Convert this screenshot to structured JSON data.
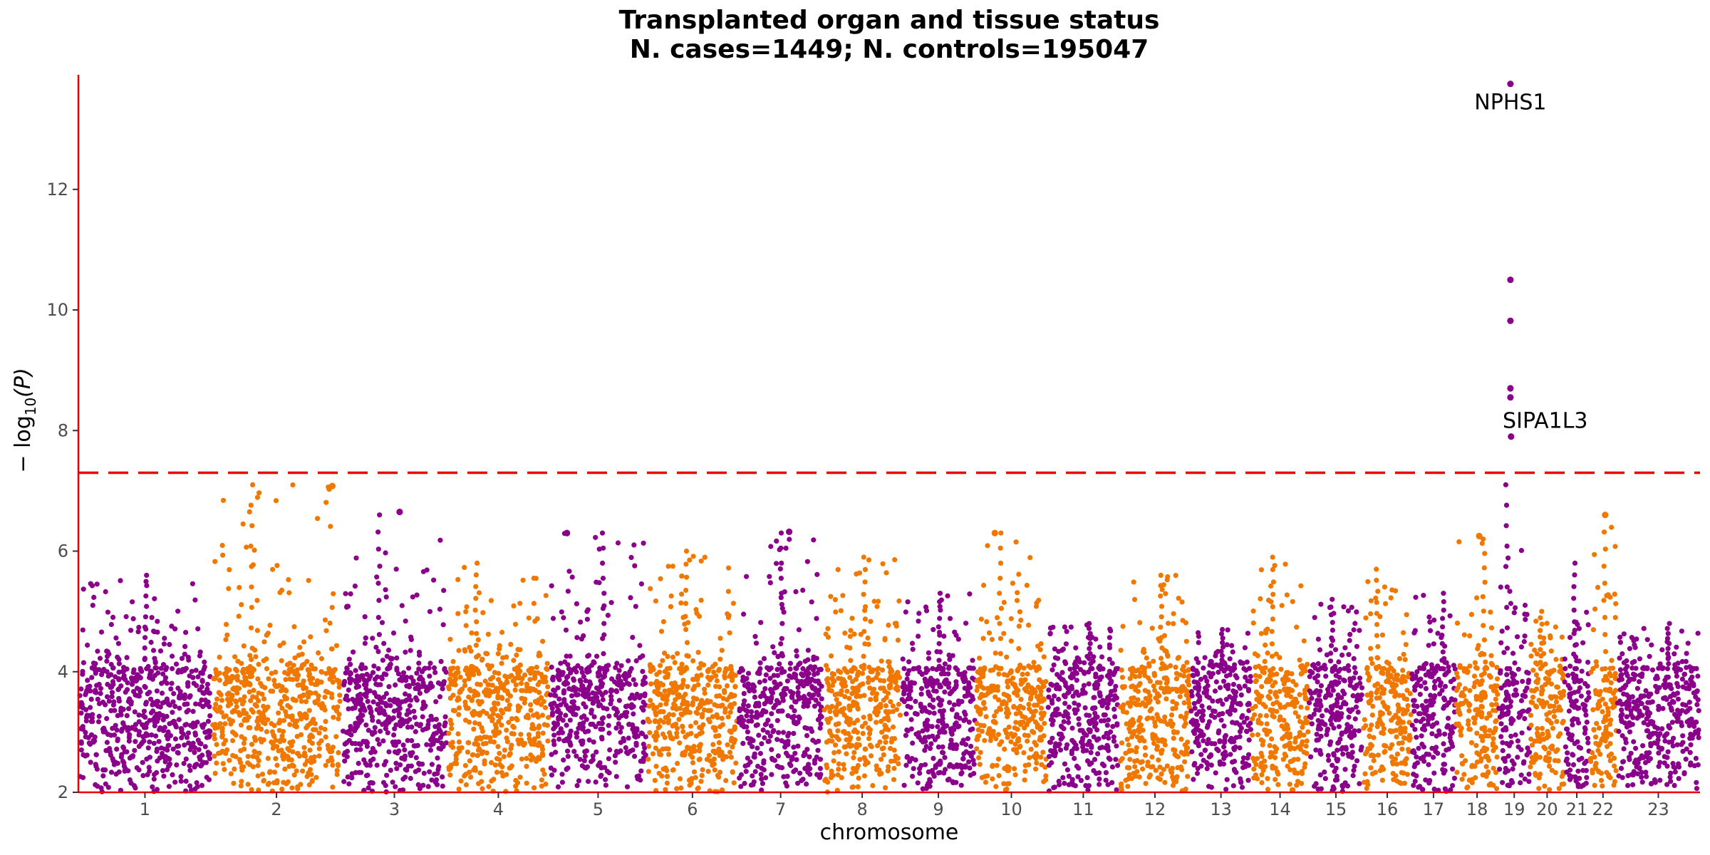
{
  "chart_data": {
    "type": "scatter",
    "title": "Transplanted organ and tissue status",
    "subtitle": "N. cases=1449; N. controls=195047",
    "xlabel": "chromosome",
    "ylabel_main": "− log",
    "ylabel_sub": "10",
    "ylabel_tail": "(P)",
    "ylim": [
      2,
      13.9
    ],
    "yticks": [
      2,
      4,
      6,
      8,
      10,
      12
    ],
    "threshold": 7.3,
    "colors": {
      "odd": "#8b008b",
      "even": "#f07800",
      "axis": "#ee0000",
      "threshold": "#ee0000"
    },
    "chromosomes": [
      "1",
      "2",
      "3",
      "4",
      "5",
      "6",
      "7",
      "8",
      "9",
      "10",
      "11",
      "12",
      "13",
      "14",
      "15",
      "16",
      "17",
      "18",
      "19",
      "20",
      "21",
      "22",
      "23"
    ],
    "chromosome_sizes": [
      249,
      243,
      198,
      191,
      182,
      171,
      159,
      146,
      139,
      134,
      135,
      133,
      114,
      107,
      102,
      90,
      83,
      80,
      59,
      64,
      47,
      51,
      156
    ],
    "chromosome_peaks": [
      5.6,
      7.1,
      6.6,
      5.8,
      6.3,
      6.0,
      6.3,
      5.9,
      5.3,
      6.3,
      4.8,
      5.6,
      4.7,
      5.9,
      5.2,
      5.7,
      5.3,
      6.2,
      7.1,
      5.0,
      5.8,
      6.6,
      4.8
    ],
    "highlight_points": [
      {
        "chr": "2",
        "pos": 0.93,
        "p": 7.08
      },
      {
        "chr": "3",
        "pos": 0.55,
        "p": 6.65
      },
      {
        "chr": "5",
        "pos": 0.18,
        "p": 6.3
      },
      {
        "chr": "7",
        "pos": 0.6,
        "p": 6.32
      },
      {
        "chr": "10",
        "pos": 0.27,
        "p": 6.3
      },
      {
        "chr": "18",
        "pos": 0.55,
        "p": 6.25
      },
      {
        "chr": "22",
        "pos": 0.58,
        "p": 6.6
      },
      {
        "chr": "19",
        "pos": 0.38,
        "p": 13.75
      },
      {
        "chr": "19",
        "pos": 0.38,
        "p": 10.5
      },
      {
        "chr": "19",
        "pos": 0.38,
        "p": 9.82
      },
      {
        "chr": "19",
        "pos": 0.38,
        "p": 8.7
      },
      {
        "chr": "19",
        "pos": 0.38,
        "p": 8.55
      },
      {
        "chr": "19",
        "pos": 0.4,
        "p": 7.9
      }
    ],
    "annotations": [
      {
        "label": "NPHS1",
        "chr": "19",
        "pos": 0.38,
        "p": 13.75
      },
      {
        "label": "SIPA1L3",
        "chr": "19",
        "pos": 0.4,
        "p": 7.9
      }
    ]
  }
}
